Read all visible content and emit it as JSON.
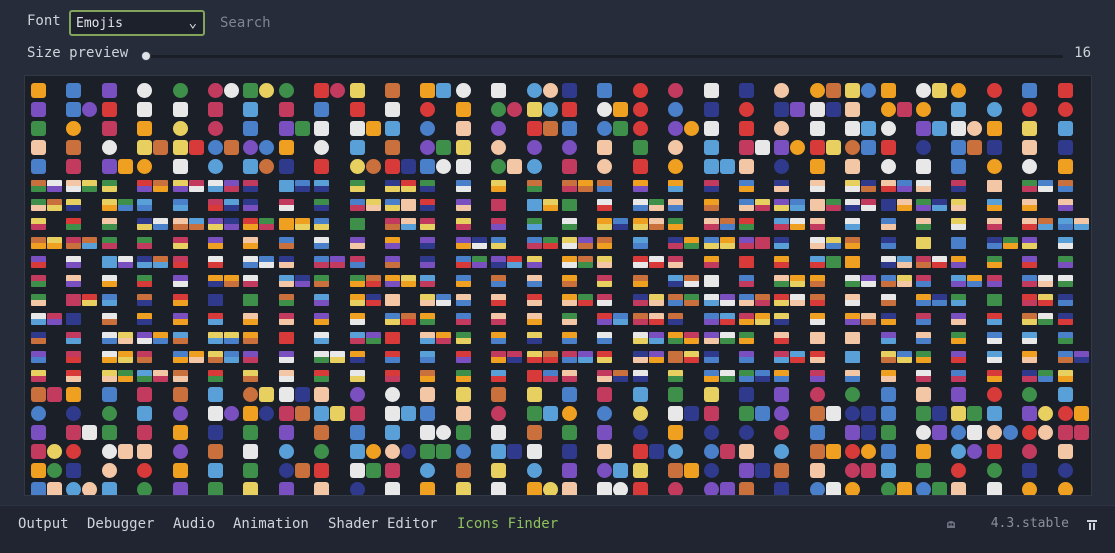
{
  "font_picker": {
    "label": "Font",
    "selected": "Emojis"
  },
  "search": {
    "placeholder": "Search",
    "value": ""
  },
  "size_preview": {
    "label": "Size preview",
    "value": "16"
  },
  "glyph_grid": {
    "rows": 22,
    "columns": 30,
    "palette": [
      "#4a7fc9",
      "#f0a020",
      "#e8d060",
      "#7a4fbf",
      "#d83a3a",
      "#e8e8e8",
      "#3e8f4a",
      "#c9703c",
      "#5aa0d8",
      "#f3c7a5",
      "#2f3a8c",
      "#c23b5e"
    ]
  },
  "bottom_panel": {
    "tabs": [
      {
        "label": "Output",
        "active": false
      },
      {
        "label": "Debugger",
        "active": false
      },
      {
        "label": "Audio",
        "active": false
      },
      {
        "label": "Animation",
        "active": false
      },
      {
        "label": "Shader Editor",
        "active": false
      },
      {
        "label": "Icons Finder",
        "active": true
      }
    ],
    "version": "4.3.stable",
    "active_color": "#8fc15e"
  }
}
